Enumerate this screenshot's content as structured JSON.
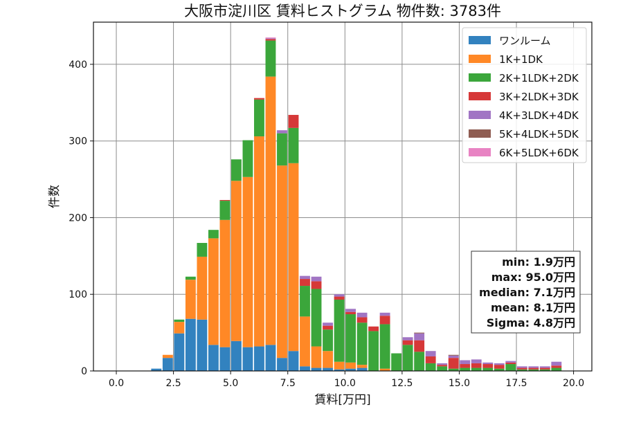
{
  "chart_data": {
    "type": "bar",
    "stacked": true,
    "title": "大阪市淀川区 賃料ヒストグラム 物件数: 3783件",
    "xlabel": "賃料[万円]",
    "ylabel": "件数",
    "xlim": [
      -1.0,
      20.8
    ],
    "ylim": [
      0,
      455
    ],
    "xticks": [
      "0.0",
      "2.5",
      "5.0",
      "7.5",
      "10.0",
      "12.5",
      "15.0",
      "17.5",
      "20.0"
    ],
    "yticks": [
      "0",
      "100",
      "200",
      "300",
      "400"
    ],
    "grid": true,
    "legend_position": "top-right",
    "bin_width": 0.5,
    "x": [
      1.75,
      2.25,
      2.75,
      3.25,
      3.75,
      4.25,
      4.75,
      5.25,
      5.75,
      6.25,
      6.75,
      7.25,
      7.75,
      8.25,
      8.75,
      9.25,
      9.75,
      10.25,
      10.75,
      11.25,
      11.75,
      12.25,
      12.75,
      13.25,
      13.75,
      14.25,
      14.75,
      15.25,
      15.75,
      16.25,
      16.75,
      17.25,
      17.75,
      18.25,
      18.75,
      19.25
    ],
    "series": [
      {
        "name": "ワンルーム",
        "color": "#3282bf",
        "values": [
          3,
          17,
          49,
          68,
          67,
          34,
          31,
          39,
          31,
          32,
          34,
          17,
          26,
          6,
          4,
          4,
          2,
          3,
          4,
          0,
          0,
          0,
          0,
          0,
          0,
          0,
          0,
          0,
          0,
          0,
          0,
          0,
          0,
          0,
          0,
          0
        ]
      },
      {
        "name": "1K+1DK",
        "color": "#ff8826",
        "values": [
          0,
          4,
          15,
          51,
          82,
          139,
          166,
          209,
          222,
          274,
          350,
          251,
          245,
          65,
          28,
          22,
          10,
          8,
          4,
          0,
          3,
          0,
          0,
          0,
          0,
          0,
          0,
          0,
          0,
          0,
          0,
          0,
          0,
          0,
          0,
          0
        ]
      },
      {
        "name": "2K+1LDK+2DK",
        "color": "#3ba63b",
        "values": [
          0,
          0,
          3,
          4,
          18,
          11,
          25,
          28,
          48,
          48,
          47,
          42,
          46,
          40,
          75,
          28,
          81,
          63,
          55,
          52,
          58,
          23,
          34,
          25,
          10,
          6,
          3,
          4,
          4,
          4,
          3,
          9,
          2,
          2,
          2,
          4
        ]
      },
      {
        "name": "3K+2LDK+3DK",
        "color": "#d63838",
        "values": [
          0,
          0,
          0,
          0,
          0,
          0,
          1,
          0,
          0,
          2,
          2,
          0,
          17,
          9,
          10,
          5,
          4,
          3,
          7,
          6,
          11,
          0,
          6,
          15,
          9,
          2,
          14,
          5,
          6,
          5,
          5,
          2,
          2,
          2,
          2,
          3
        ]
      },
      {
        "name": "4K+3LDK+4DK",
        "color": "#a175c4",
        "values": [
          0,
          0,
          0,
          0,
          0,
          0,
          0,
          0,
          0,
          0,
          1,
          4,
          0,
          4,
          6,
          4,
          3,
          4,
          6,
          0,
          4,
          0,
          4,
          9,
          7,
          2,
          3,
          5,
          5,
          2,
          2,
          2,
          2,
          2,
          2,
          5
        ]
      },
      {
        "name": "5K+4LDK+5DK",
        "color": "#8f5d52",
        "values": [
          0,
          0,
          0,
          0,
          0,
          0,
          0,
          0,
          0,
          0,
          0,
          0,
          0,
          0,
          0,
          0,
          0,
          0,
          0,
          0,
          0,
          0,
          0,
          1,
          0,
          0,
          1,
          0,
          0,
          0,
          0,
          0,
          0,
          0,
          0,
          0
        ]
      },
      {
        "name": "6K+5LDK+6DK",
        "color": "#e883c3",
        "values": [
          0,
          0,
          0,
          0,
          0,
          0,
          0,
          0,
          0,
          0,
          1,
          0,
          0,
          0,
          0,
          0,
          0,
          0,
          0,
          0,
          0,
          0,
          0,
          0,
          0,
          0,
          0,
          0,
          0,
          0,
          0,
          0,
          0,
          0,
          0,
          0
        ]
      }
    ],
    "stats": [
      "min: 1.9万円",
      "max: 95.0万円",
      "median: 7.1万円",
      "mean: 8.1万円",
      "Sigma: 4.8万円"
    ]
  }
}
